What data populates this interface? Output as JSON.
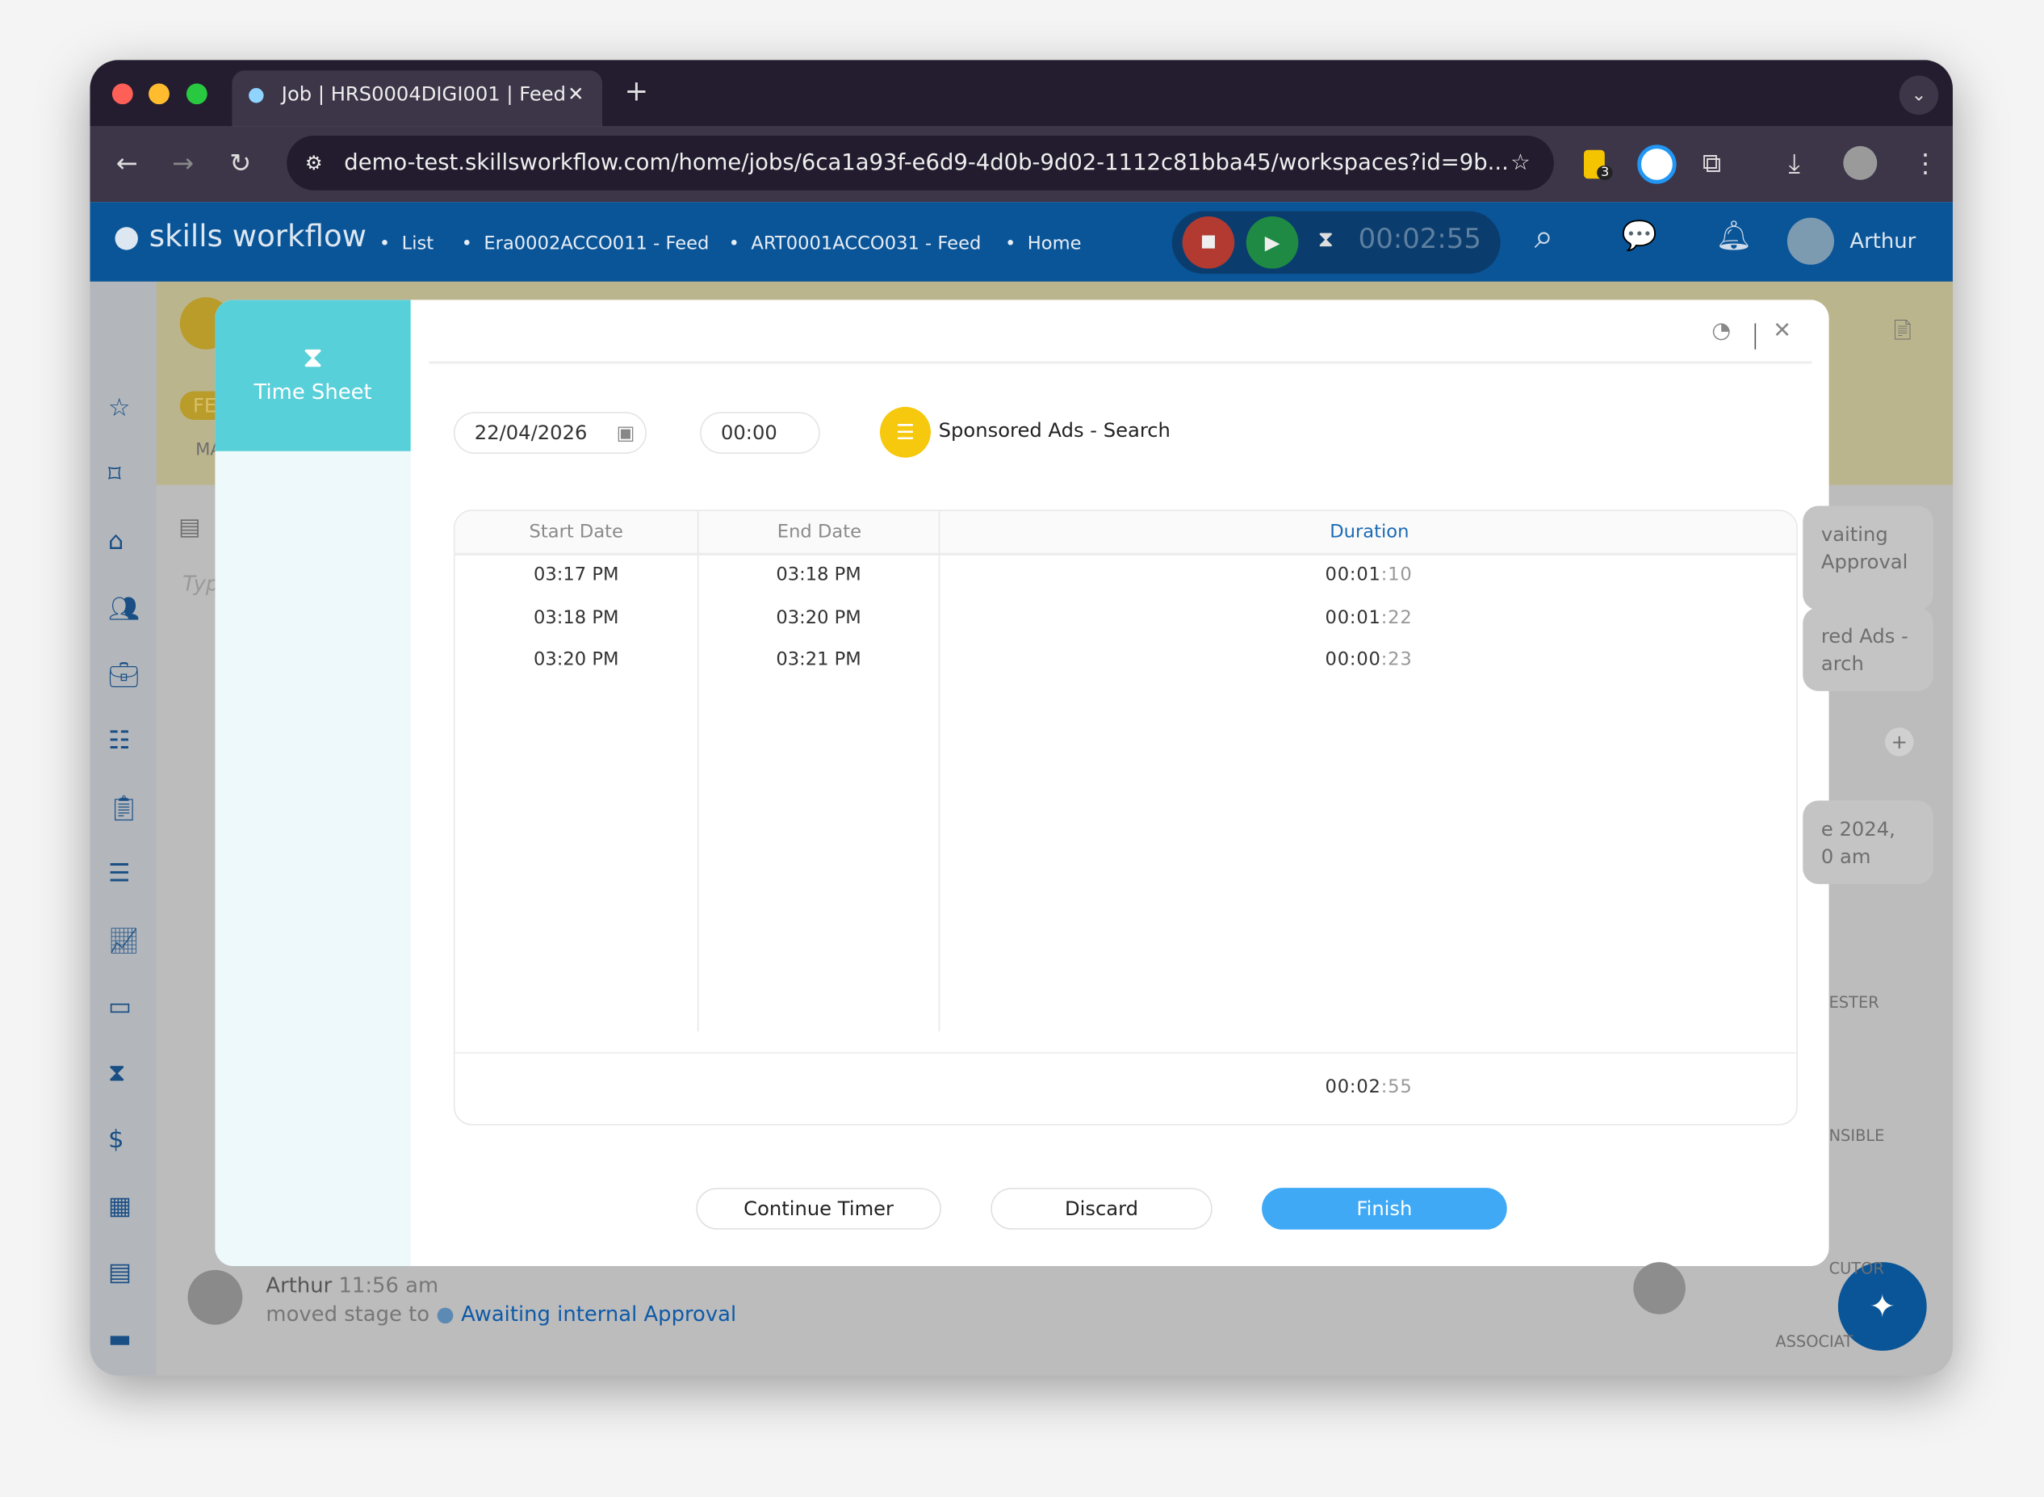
{
  "browser": {
    "tab_title": "Job | HRS0004DIGI001 | Feed",
    "url": "demo-test.skillsworkflow.com/home/jobs/6ca1a93f-e6d9-4d0b-9d02-1112c81bba45/workspaces?id=9b...",
    "extension_badge": "3"
  },
  "app": {
    "logo": "skills workflow",
    "breadcrumbs": [
      "List",
      "Era0002ACCO011 - Feed",
      "ART0001ACCO031 - Feed",
      "Home"
    ],
    "timer": "00:02:55",
    "user": "Arthur",
    "brand_color": "#0a5598"
  },
  "background": {
    "left_fragments": [
      "FE",
      "MA",
      "Typ"
    ],
    "right_fragments": [
      "vaiting",
      "Approval",
      "red Ads -",
      "arch",
      "e 2024,",
      "0 am",
      "ESTER",
      "NSIBLE",
      "CUTOR",
      "ASSOCIAT"
    ],
    "activity": {
      "user": "Arthur",
      "time": "11:56 am",
      "action": "moved stage to",
      "stage": "Awaiting internal Approval"
    }
  },
  "modal": {
    "title": "Time Sheet",
    "date": "22/04/2026",
    "time": "00:00",
    "task": "Sponsored Ads - Search",
    "columns": [
      "Start Date",
      "End Date",
      "Duration"
    ],
    "rows": [
      {
        "start": "03:17 PM",
        "end": "03:18 PM",
        "dur": "00:01",
        "sec": ":10"
      },
      {
        "start": "03:18 PM",
        "end": "03:20 PM",
        "dur": "00:01",
        "sec": ":22"
      },
      {
        "start": "03:20 PM",
        "end": "03:21 PM",
        "dur": "00:00",
        "sec": ":23"
      }
    ],
    "total": {
      "dur": "00:02",
      "sec": ":55"
    },
    "buttons": {
      "continue": "Continue Timer",
      "discard": "Discard",
      "finish": "Finish"
    },
    "accent": "#3fa9f5"
  }
}
